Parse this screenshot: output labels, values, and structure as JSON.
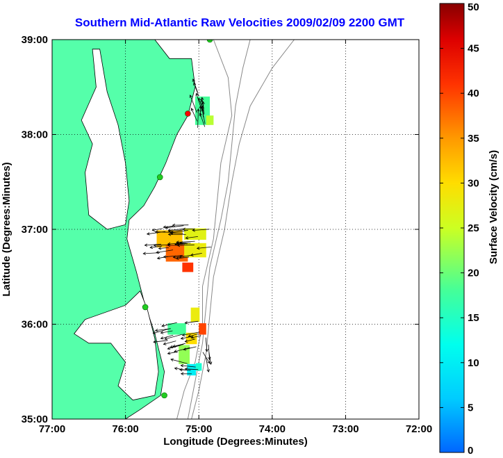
{
  "chart_data": {
    "type": "map",
    "title": "Southern Mid-Atlantic Raw Velocities 2009/02/09 2200 GMT",
    "title_color": "#0000ff",
    "xlabel": "Longitude (Degrees:Minutes)",
    "ylabel": "Latitude (Degrees:Minutes)",
    "x_range": [
      -77,
      -72
    ],
    "y_range": [
      35,
      39
    ],
    "x_ticks": [
      {
        "value": -77,
        "label": "77:00"
      },
      {
        "value": -76,
        "label": "76:00"
      },
      {
        "value": -75,
        "label": "75:00"
      },
      {
        "value": -74,
        "label": "74:00"
      },
      {
        "value": -73,
        "label": "73:00"
      },
      {
        "value": -72,
        "label": "72:00"
      }
    ],
    "y_ticks": [
      {
        "value": 35,
        "label": "35:00"
      },
      {
        "value": 36,
        "label": "36:00"
      },
      {
        "value": 37,
        "label": "37:00"
      },
      {
        "value": 38,
        "label": "38:00"
      },
      {
        "value": 39,
        "label": "39:00"
      }
    ],
    "grid": "dotted",
    "land_color": "#55ffaa",
    "colorbar": {
      "label": "Surface Velocity (cm/s)",
      "range": [
        0,
        50
      ],
      "ticks": [
        "0",
        "5",
        "10",
        "15",
        "20",
        "25",
        "30",
        "35",
        "40",
        "45",
        "50"
      ],
      "colormap": "jet"
    },
    "stations": [
      {
        "lon": -74.85,
        "lat": 39.0,
        "color": "#22cc22"
      },
      {
        "lon": -75.15,
        "lat": 38.22,
        "color": "#ff0000"
      },
      {
        "lon": -75.53,
        "lat": 37.55,
        "color": "#22cc22"
      },
      {
        "lon": -75.73,
        "lat": 36.18,
        "color": "#22cc22"
      },
      {
        "lon": -75.47,
        "lat": 35.25,
        "color": "#22cc22"
      }
    ],
    "velocity_patches": [
      {
        "lon": -74.95,
        "lat": 38.25,
        "w": 0.2,
        "h": 0.3,
        "speed": 18
      },
      {
        "lon": -74.85,
        "lat": 38.15,
        "w": 0.1,
        "h": 0.1,
        "speed": 24
      },
      {
        "lon": -75.4,
        "lat": 36.9,
        "w": 0.35,
        "h": 0.18,
        "speed": 32
      },
      {
        "lon": -75.05,
        "lat": 36.95,
        "w": 0.3,
        "h": 0.12,
        "speed": 27
      },
      {
        "lon": -75.3,
        "lat": 36.75,
        "w": 0.3,
        "h": 0.18,
        "speed": 38
      },
      {
        "lon": -75.05,
        "lat": 36.78,
        "w": 0.3,
        "h": 0.15,
        "speed": 28
      },
      {
        "lon": -75.15,
        "lat": 36.6,
        "w": 0.15,
        "h": 0.1,
        "speed": 41
      },
      {
        "lon": -75.05,
        "lat": 36.1,
        "w": 0.12,
        "h": 0.15,
        "speed": 28
      },
      {
        "lon": -74.95,
        "lat": 35.95,
        "w": 0.1,
        "h": 0.12,
        "speed": 40
      },
      {
        "lon": -75.3,
        "lat": 35.95,
        "w": 0.25,
        "h": 0.12,
        "speed": 18
      },
      {
        "lon": -75.1,
        "lat": 35.85,
        "w": 0.15,
        "h": 0.12,
        "speed": 30
      },
      {
        "lon": -75.2,
        "lat": 35.68,
        "w": 0.15,
        "h": 0.2,
        "speed": 22
      },
      {
        "lon": -75.1,
        "lat": 35.52,
        "w": 0.12,
        "h": 0.12,
        "speed": 10
      },
      {
        "lon": -75.0,
        "lat": 35.55,
        "w": 0.08,
        "h": 0.08,
        "speed": 14
      }
    ],
    "vector_groups": [
      {
        "lon": [
          -75.05,
          -74.85
        ],
        "lat": [
          38.05,
          38.45
        ],
        "u": -0.2,
        "v": 1.0,
        "count": 14
      },
      {
        "lon": [
          -75.55,
          -74.8
        ],
        "lat": [
          36.7,
          37.05
        ],
        "u": -1.0,
        "v": -0.1,
        "count": 34
      },
      {
        "lon": [
          -75.45,
          -74.95
        ],
        "lat": [
          35.7,
          36.05
        ],
        "u": -0.9,
        "v": -0.2,
        "count": 20
      },
      {
        "lon": [
          -75.25,
          -75.0
        ],
        "lat": [
          35.4,
          35.6
        ],
        "u": -1.0,
        "v": 0.1,
        "count": 6
      },
      {
        "lon": [
          -74.95,
          -74.85
        ],
        "lat": [
          35.6,
          35.9
        ],
        "u": 0.3,
        "v": -1.0,
        "count": 5
      }
    ],
    "isobaths": [
      [
        [
          -74.8,
          39.0
        ],
        [
          -74.6,
          38.6
        ],
        [
          -74.55,
          38.2
        ],
        [
          -74.7,
          37.7
        ],
        [
          -74.75,
          37.3
        ],
        [
          -74.8,
          36.9
        ],
        [
          -74.95,
          36.4
        ],
        [
          -74.95,
          36.0
        ],
        [
          -75.05,
          35.6
        ],
        [
          -75.2,
          35.3
        ],
        [
          -75.3,
          35.0
        ]
      ],
      [
        [
          -74.3,
          39.0
        ],
        [
          -74.4,
          38.7
        ],
        [
          -74.5,
          38.3
        ],
        [
          -74.55,
          37.9
        ],
        [
          -74.6,
          37.5
        ],
        [
          -74.7,
          37.1
        ],
        [
          -74.85,
          36.6
        ],
        [
          -74.9,
          36.2
        ],
        [
          -74.95,
          35.8
        ],
        [
          -75.05,
          35.4
        ],
        [
          -75.15,
          35.0
        ]
      ],
      [
        [
          -73.7,
          39.0
        ],
        [
          -74.0,
          38.7
        ],
        [
          -74.3,
          38.3
        ],
        [
          -74.45,
          37.9
        ],
        [
          -74.55,
          37.5
        ],
        [
          -74.65,
          37.0
        ],
        [
          -74.8,
          36.5
        ],
        [
          -74.85,
          36.1
        ],
        [
          -74.9,
          35.7
        ],
        [
          -75.0,
          35.3
        ],
        [
          -75.1,
          35.0
        ]
      ]
    ],
    "coastline": [
      [
        -77,
        39.0
      ],
      [
        -75.6,
        39.0
      ],
      [
        -75.4,
        38.8
      ],
      [
        -75.1,
        38.8
      ],
      [
        -75.05,
        38.5
      ],
      [
        -75.15,
        38.2
      ],
      [
        -75.3,
        38.0
      ],
      [
        -75.45,
        37.7
      ],
      [
        -75.6,
        37.45
      ],
      [
        -75.75,
        37.25
      ],
      [
        -75.95,
        37.1
      ],
      [
        -75.98,
        36.9
      ],
      [
        -75.85,
        36.55
      ],
      [
        -75.75,
        36.25
      ],
      [
        -75.6,
        35.9
      ],
      [
        -75.47,
        35.5
      ],
      [
        -75.52,
        35.25
      ],
      [
        -75.8,
        35.1
      ],
      [
        -76.0,
        35.0
      ],
      [
        -77,
        35.0
      ]
    ],
    "bay_water": [
      [
        -76.0,
        37.05
      ],
      [
        -76.25,
        37.0
      ],
      [
        -76.5,
        37.15
      ],
      [
        -76.55,
        37.6
      ],
      [
        -76.45,
        37.9
      ],
      [
        -76.6,
        38.15
      ],
      [
        -76.4,
        38.5
      ],
      [
        -76.45,
        38.9
      ],
      [
        -76.35,
        38.9
      ],
      [
        -76.25,
        38.45
      ],
      [
        -76.1,
        38.1
      ],
      [
        -76.0,
        37.7
      ],
      [
        -75.95,
        37.3
      ]
    ],
    "sound_water": [
      [
        -75.8,
        36.35
      ],
      [
        -76.0,
        36.2
      ],
      [
        -76.55,
        36.05
      ],
      [
        -76.7,
        35.9
      ],
      [
        -76.5,
        35.8
      ],
      [
        -76.2,
        35.8
      ],
      [
        -76.0,
        35.6
      ],
      [
        -76.1,
        35.35
      ],
      [
        -75.9,
        35.2
      ],
      [
        -75.6,
        35.25
      ],
      [
        -75.55,
        35.5
      ],
      [
        -75.6,
        35.85
      ],
      [
        -75.7,
        36.15
      ]
    ]
  }
}
